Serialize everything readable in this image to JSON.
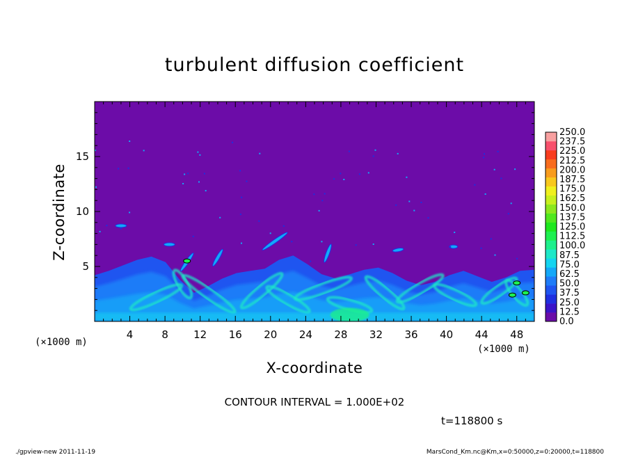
{
  "chart_data": {
    "type": "heatmap",
    "title": "turbulent diffusion coefficient",
    "xlabel": "X-coordinate",
    "ylabel": "Z-coordinate",
    "x_unit": "(×1000 m)",
    "z_unit": "(×1000 m)",
    "xlim": [
      0,
      50
    ],
    "ylim": [
      0,
      20
    ],
    "x_ticks": [
      "4",
      "8",
      "12",
      "16",
      "20",
      "24",
      "28",
      "32",
      "36",
      "40",
      "44",
      "48"
    ],
    "y_ticks": [
      "5",
      "10",
      "15"
    ],
    "colorbar_levels": [
      "0.0",
      "12.5",
      "25.0",
      "37.5",
      "50.0",
      "62.5",
      "75.0",
      "87.5",
      "100.0",
      "112.5",
      "125.0",
      "137.5",
      "150.0",
      "162.5",
      "175.0",
      "187.5",
      "200.0",
      "212.5",
      "225.0",
      "237.5",
      "250.0"
    ],
    "colorbar_colors": [
      "#6a0da8",
      "#3a14c8",
      "#1f2fe0",
      "#1f55f0",
      "#1f7cf8",
      "#14a8f8",
      "#14d4f0",
      "#1ee8c8",
      "#1ef08c",
      "#1ef050",
      "#1ee81e",
      "#50e81e",
      "#8ce81e",
      "#c8f01e",
      "#f0f01e",
      "#f8c81e",
      "#f89c1e",
      "#f86c1e",
      "#f83c1e",
      "#f8506c",
      "#f8a0a0"
    ],
    "background_color": "#6c0ca8",
    "turbulent_layer_top_km": [
      4.2,
      4.6,
      5.1,
      5.6,
      5.9,
      5.4,
      3.8,
      2.6,
      3.2,
      3.9,
      4.4,
      4.6,
      4.8,
      5.6,
      6.0,
      5.2,
      4.3,
      3.9,
      4.3,
      4.7,
      4.9,
      4.4,
      3.7,
      3.3,
      3.6,
      4.2,
      4.6,
      4.1,
      3.6,
      4.0,
      4.6,
      4.7
    ],
    "contour_interval_text": "CONTOUR INTERVAL = 1.000E+02",
    "time_text": "t=118800 s"
  },
  "footer": {
    "program": "./gpview-new   2011-11-19",
    "source": "MarsCond_Km.nc@Km,x=0:50000,z=0:20000,t=118800"
  }
}
